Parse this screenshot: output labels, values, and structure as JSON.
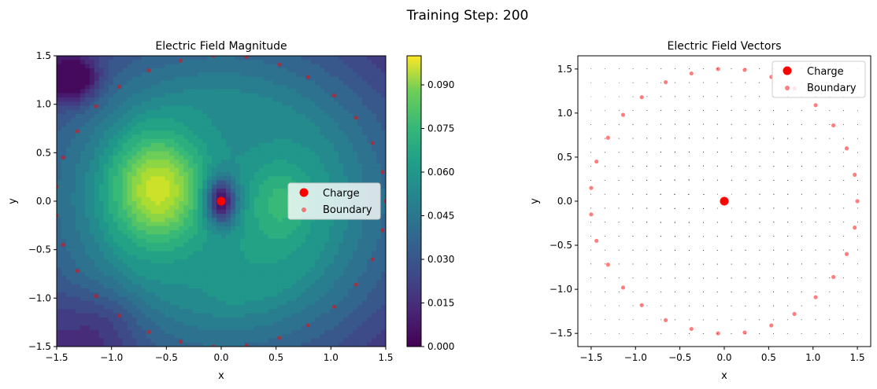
{
  "figure": {
    "suptitle": "Training Step: 200"
  },
  "chart_data": [
    {
      "type": "heatmap",
      "title": "Electric Field Magnitude",
      "xlabel": "x",
      "ylabel": "y",
      "xlim": [
        -1.5,
        1.5
      ],
      "ylim": [
        -1.5,
        1.5
      ],
      "xticks": [
        -1.5,
        -1.0,
        -0.5,
        0.0,
        0.5,
        1.0,
        1.5
      ],
      "yticks": [
        -1.5,
        -1.0,
        -0.5,
        0.0,
        0.5,
        1.0,
        1.5
      ],
      "tick_labels_x": [
        "−1.5",
        "−1.0",
        "−0.5",
        "0.0",
        "0.5",
        "1.0",
        "1.5"
      ],
      "tick_labels_y": [
        "−1.5",
        "−1.0",
        "−0.5",
        "0.0",
        "0.5",
        "1.0",
        "1.5"
      ],
      "colormap": "viridis",
      "colorbar": {
        "range": [
          0.0,
          0.1
        ],
        "ticks": [
          0.0,
          0.015,
          0.03,
          0.045,
          0.06,
          0.075,
          0.09
        ],
        "tick_labels": [
          "0.000",
          "0.015",
          "0.030",
          "0.045",
          "0.060",
          "0.075",
          "0.090"
        ]
      },
      "features": [
        {
          "kind": "peak",
          "x": -0.58,
          "y": 0.15,
          "value": 0.095
        },
        {
          "kind": "local-max",
          "x": 0.55,
          "y": 0.0,
          "value": 0.07
        },
        {
          "kind": "minimum-at-charge",
          "x": 0.0,
          "y": 0.0,
          "value": 0.002
        },
        {
          "kind": "low-corner",
          "x": -1.35,
          "y": 1.25,
          "value": 0.004
        }
      ],
      "legend": {
        "placement": "center-right",
        "entries": [
          "Charge",
          "Boundary"
        ]
      }
    },
    {
      "type": "scatter",
      "title": "Electric Field Vectors",
      "xlabel": "x",
      "ylabel": "y",
      "xlim": [
        -1.65,
        1.65
      ],
      "ylim": [
        -1.65,
        1.65
      ],
      "xticks": [
        -1.5,
        -1.0,
        -0.5,
        0.0,
        0.5,
        1.0,
        1.5
      ],
      "yticks": [
        -1.5,
        -1.0,
        -0.5,
        0.0,
        0.5,
        1.0,
        1.5
      ],
      "tick_labels_x": [
        "−1.5",
        "−1.0",
        "−0.5",
        "0.0",
        "0.5",
        "1.0",
        "1.5"
      ],
      "tick_labels_y": [
        "−1.5",
        "−1.0",
        "−0.5",
        "0.0",
        "0.5",
        "1.0",
        "1.5"
      ],
      "quiver_grid": {
        "xmin": -1.5,
        "xmax": 1.5,
        "ymin": -1.5,
        "ymax": 1.5,
        "n": 20
      },
      "legend": {
        "placement": "upper-right",
        "entries": [
          "Charge",
          "Boundary"
        ]
      }
    }
  ],
  "series": {
    "charge": {
      "name": "Charge",
      "color": "#ff0000",
      "points": [
        [
          0.0,
          0.0
        ]
      ]
    },
    "boundary": {
      "name": "Boundary",
      "color": "#ff0000",
      "alpha": 0.5,
      "points": [
        [
          1.5,
          0.0
        ],
        [
          1.47,
          0.3
        ],
        [
          1.38,
          0.6
        ],
        [
          1.23,
          0.86
        ],
        [
          1.03,
          1.09
        ],
        [
          0.79,
          1.28
        ],
        [
          0.53,
          1.41
        ],
        [
          0.23,
          1.49
        ],
        [
          -0.07,
          1.5
        ],
        [
          -0.37,
          1.45
        ],
        [
          -0.66,
          1.35
        ],
        [
          -0.93,
          1.18
        ],
        [
          -1.14,
          0.98
        ],
        [
          -1.31,
          0.72
        ],
        [
          -1.44,
          0.45
        ],
        [
          -1.5,
          0.15
        ],
        [
          -1.5,
          -0.15
        ],
        [
          -1.44,
          -0.45
        ],
        [
          -1.31,
          -0.72
        ],
        [
          -1.14,
          -0.98
        ],
        [
          -0.93,
          -1.18
        ],
        [
          -0.66,
          -1.35
        ],
        [
          -0.37,
          -1.45
        ],
        [
          -0.07,
          -1.5
        ],
        [
          0.23,
          -1.49
        ],
        [
          0.53,
          -1.41
        ],
        [
          0.79,
          -1.28
        ],
        [
          1.03,
          -1.09
        ],
        [
          1.23,
          -0.86
        ],
        [
          1.38,
          -0.6
        ],
        [
          1.47,
          -0.3
        ]
      ]
    }
  }
}
